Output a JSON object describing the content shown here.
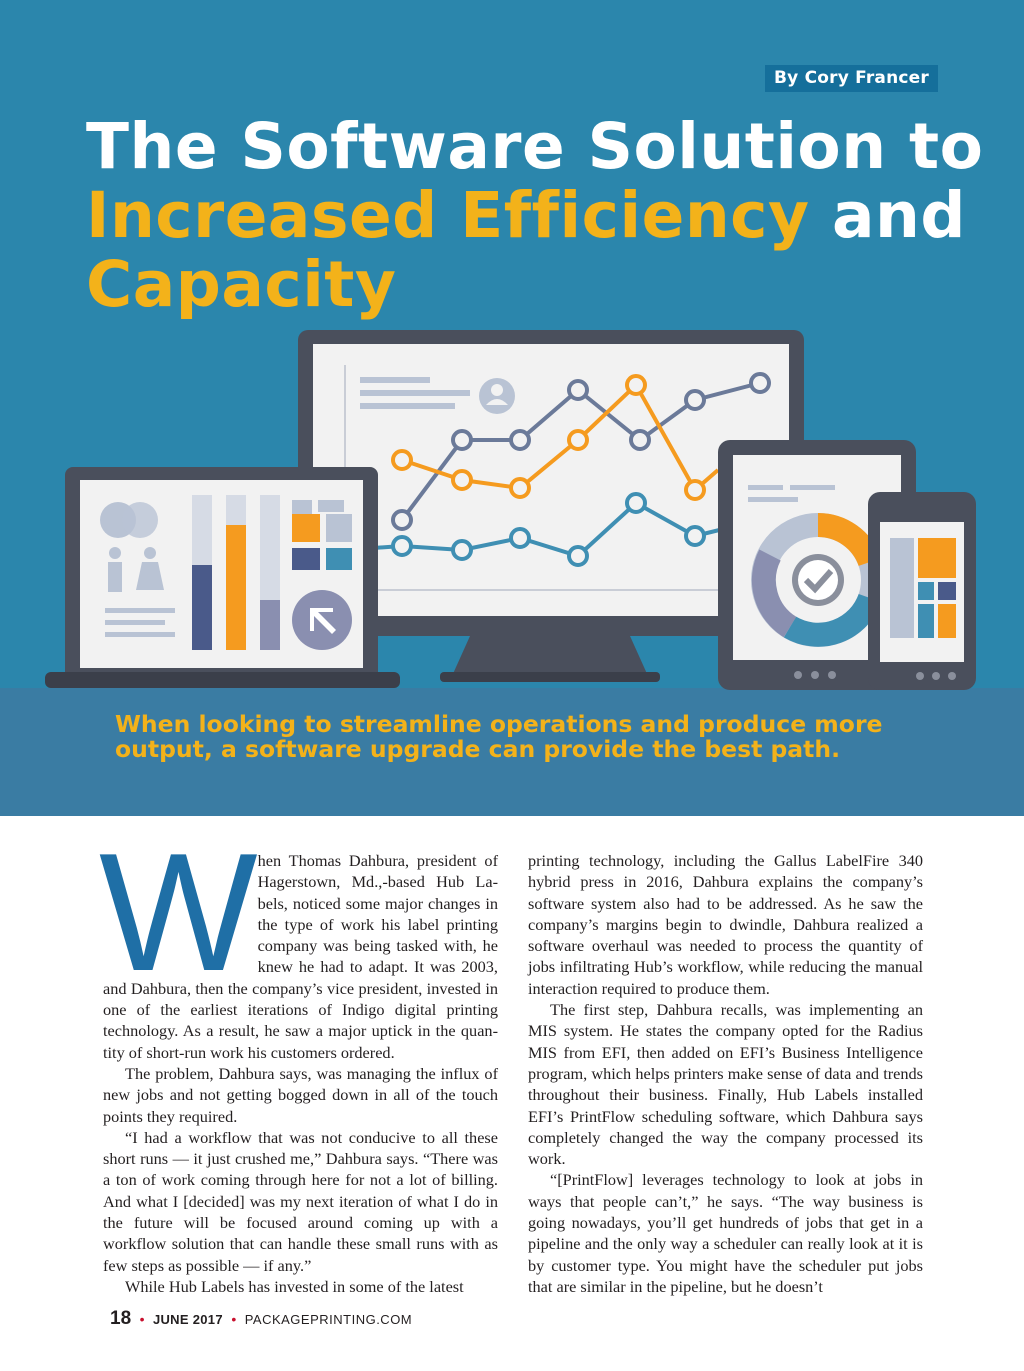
{
  "byline": "By Cory Francer",
  "headline": {
    "part1": "The Software Solution to ",
    "part2": "Increased Efficiency",
    "part3": " and ",
    "part4": "Capacity"
  },
  "deck": "When looking to streamline operations and produce more output, a software upgrade can provide the best path.",
  "colors": {
    "hero_background": "#2b86ac",
    "deck_background": "#3a7ca3",
    "accent_yellow": "#f3b21a",
    "byline_background": "#156f9b",
    "dropcap": "#1f6fa6",
    "folio_dot": "#c8102e"
  },
  "illustration": {
    "icons": [
      "desktop-monitor-icon",
      "laptop-icon",
      "tablet-icon",
      "phone-icon",
      "line-chart-icon",
      "bar-chart-icon",
      "donut-chart-icon",
      "checkmark-icon",
      "user-profile-icon",
      "people-icon",
      "cursor-arrow-icon"
    ]
  },
  "article": {
    "dropcap": "W",
    "left_paragraphs": [
      "hen Thomas Dahbura, president of Hagerstown, Md.,-based Hub La­bels, noticed some major changes in the type of work his label printing company was being tasked with, he knew he had to adapt. It was 2003, and Dahbura, then the company’s vice president, invested in one of the earliest iterations of Indigo digital printing technology. As a result, he saw a major uptick in the quan­tity of short-run work his customers ordered.",
      "The problem, Dahbura says, was managing the influx of new jobs and not getting bogged down in all of the touch points they required.",
      "“I had a workflow that was not conducive to all these short runs — it just crushed me,” Dahbura says. “There was a ton of work coming through here for not a lot of billing. And what I [decided] was my next iteration of what I do in the future will be focused around coming up with a workflow solution that can handle these small runs with as few steps as possible — if any.”",
      "While Hub Labels has invested in some of the latest"
    ],
    "right_paragraphs": [
      "printing technology, including the Gallus LabelFire 340 hybrid press in 2016, Dahbura explains the company’s software system also had to be addressed. As he saw the company’s margins begin to dwindle, Dahbura realized a software overhaul was needed to process the quantity of jobs infiltrating Hub’s workflow, while reducing the man­ual interaction required to produce them.",
      "The first step, Dahbura recalls, was implementing an MIS system. He states the company opted for the Radius MIS from EFI, then added on EFI’s Business Intelligence program, which helps printers make sense of data and trends throughout their business. Finally, Hub Labels in­stalled EFI’s PrintFlow scheduling software, which Dah­bura says completely changed the way the company pro­cessed its work.",
      "“[PrintFlow] leverages technology to look at jobs in ways that people can’t,” he says. “The way business is going nowadays, you’ll get hundreds of jobs that get in a pipeline and the only way a scheduler can really look at it is by customer type. You might have the scheduler put jobs that are similar in the pipeline, but he doesn’t"
    ]
  },
  "footer": {
    "page_number": "18",
    "separator": "•",
    "issue": "JUNE 2017",
    "website": "PACKAGEPRINTING.COM"
  }
}
